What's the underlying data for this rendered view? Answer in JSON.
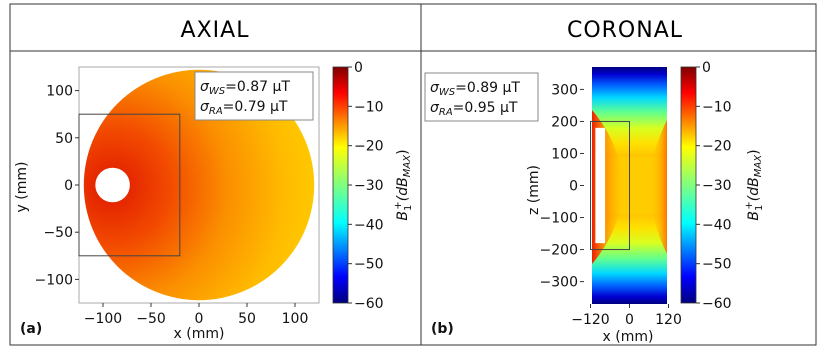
{
  "titles": {
    "left": "AXIAL",
    "right": "CORONAL"
  },
  "annotations": {
    "axial": {
      "ws_sym": "σ",
      "ws_sub": "WS",
      "ws_val": "=0.87 μT",
      "ra_sym": "σ",
      "ra_sub": "RA",
      "ra_val": "=0.79 μT"
    },
    "coronal": {
      "ws_sym": "σ",
      "ws_sub": "WS",
      "ws_val": "=0.89 μT",
      "ra_sym": "σ",
      "ra_sub": "RA",
      "ra_val": "=0.95 μT"
    }
  },
  "panel_labels": {
    "a": "(a)",
    "b": "(b)"
  },
  "colors": {
    "map": "jet",
    "background": "#ffffff",
    "border": "#333333"
  },
  "chart_data": [
    {
      "type": "heatmap",
      "title": "AXIAL",
      "xlabel": "x (mm)",
      "ylabel": "y (mm)",
      "xlim": [
        -125,
        125
      ],
      "ylim": [
        -125,
        125
      ],
      "xticks": [
        "−100",
        "−50",
        "0",
        "50",
        "100"
      ],
      "yticks": [
        "100",
        "50",
        "0",
        "−50",
        "−100"
      ],
      "colorbar": {
        "label": "B1+ (dBMAX)",
        "label_main": "B",
        "label_sub": "1",
        "label_sup": "+",
        "label_unit": "(dB",
        "label_unit_sub": "MAX",
        "label_close": ")",
        "range": [
          -60,
          0
        ],
        "ticks": [
          "0",
          "−10",
          "−20",
          "−30",
          "−40",
          "−50",
          "−60"
        ]
      },
      "phantom_radius": 120,
      "hole": {
        "x": -90,
        "y": 0,
        "r": 18
      },
      "roi_rect": {
        "x0": -125,
        "x1": -20,
        "y0": -75,
        "y1": 75
      }
    },
    {
      "type": "heatmap",
      "title": "CORONAL",
      "xlabel": "x (mm)",
      "ylabel": "z (mm)",
      "xlim": [
        -140,
        140
      ],
      "ylim": [
        -370,
        370
      ],
      "xticks": [
        "−120",
        "0",
        "120"
      ],
      "yticks": [
        "300",
        "200",
        "100",
        "0",
        "−100",
        "−200",
        "−300"
      ],
      "colorbar": {
        "label": "B1+ (dBMAX)",
        "label_main": "B",
        "label_sub": "1",
        "label_sup": "+",
        "label_unit": "(dB",
        "label_unit_sub": "MAX",
        "label_close": ")",
        "range": [
          -60,
          0
        ],
        "ticks": [
          "0",
          "−10",
          "−20",
          "−30",
          "−40",
          "−50",
          "−60"
        ]
      },
      "slab": {
        "x0": -120,
        "x1": 120
      },
      "insert": {
        "x0": -105,
        "x1": -75,
        "z0": -180,
        "z1": 180
      },
      "roi_rect": {
        "x0": -120,
        "x1": 0,
        "z0": -200,
        "z1": 200
      }
    }
  ]
}
